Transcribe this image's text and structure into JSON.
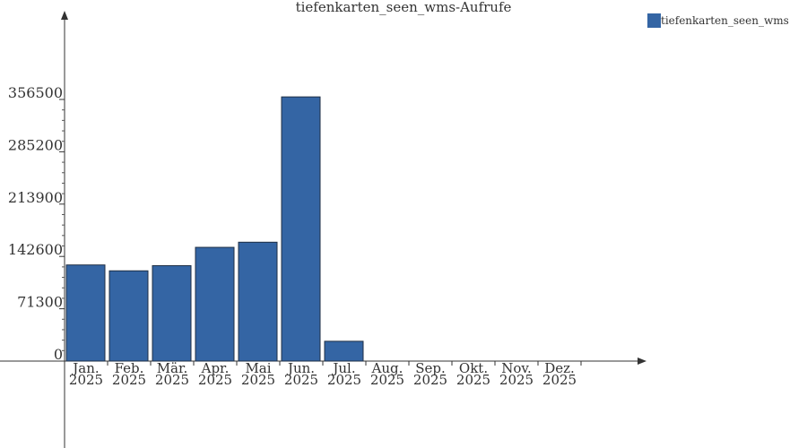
{
  "chart_data": {
    "type": "bar",
    "title": "tiefenkarten_seen_wms-Aufrufe",
    "categories": [
      [
        "Jan.",
        "2025"
      ],
      [
        "Feb.",
        "2025"
      ],
      [
        "Mär.",
        "2025"
      ],
      [
        "Apr.",
        "2025"
      ],
      [
        "Mai",
        "2025"
      ],
      [
        "Jun.",
        "2025"
      ],
      [
        "Jul.",
        "2025"
      ],
      [
        "Aug.",
        "2025"
      ],
      [
        "Sep.",
        "2025"
      ],
      [
        "Okt.",
        "2025"
      ],
      [
        "Nov.",
        "2025"
      ],
      [
        "Dez.",
        "2025"
      ]
    ],
    "series": [
      {
        "name": "tiefenkarten_seen_wms",
        "color": "#3465a4",
        "values": [
          131000,
          123000,
          130000,
          155000,
          162000,
          360000,
          27000,
          0,
          0,
          0,
          0,
          0
        ]
      }
    ],
    "yticks": [
      0,
      71300,
      142600,
      213900,
      285200,
      356500
    ],
    "ylim": [
      0,
      356500
    ],
    "legend_position": "top-right",
    "grid": false
  }
}
